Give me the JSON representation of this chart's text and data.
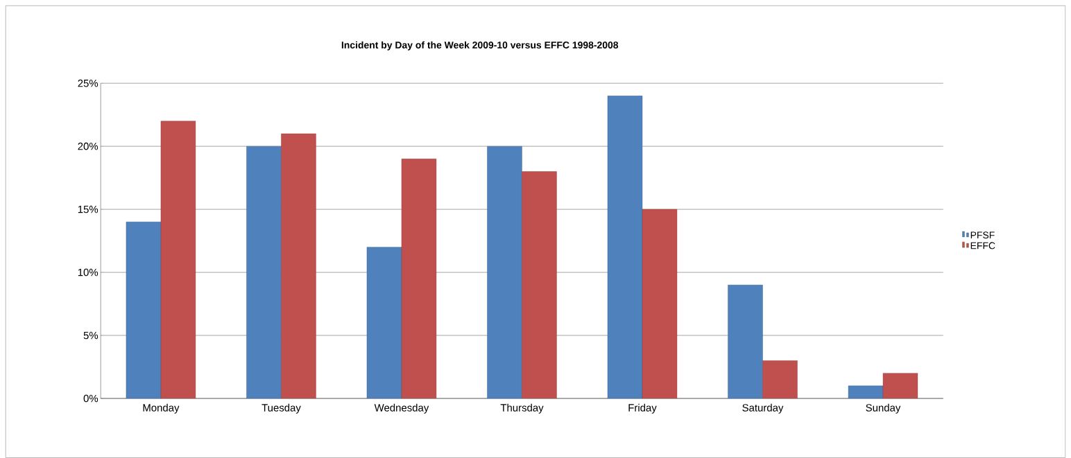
{
  "chart_data": {
    "type": "bar",
    "title": "Incident by Day of the Week 2009-10 versus EFFC 1998-2008",
    "categories": [
      "Monday",
      "Tuesday",
      "Wednesday",
      "Thursday",
      "Friday",
      "Saturday",
      "Sunday"
    ],
    "series": [
      {
        "name": "PFSF",
        "color": "#4f81bd",
        "values": [
          14,
          20,
          12,
          20,
          24,
          9,
          1
        ]
      },
      {
        "name": "EFFC",
        "color": "#c0504d",
        "values": [
          22,
          21,
          19,
          18,
          15,
          3,
          2
        ]
      }
    ],
    "ylim": [
      0,
      25
    ],
    "yticks": [
      {
        "value": 0,
        "label": "0%"
      },
      {
        "value": 5,
        "label": "5%"
      },
      {
        "value": 10,
        "label": "10%"
      },
      {
        "value": 15,
        "label": "15%"
      },
      {
        "value": 20,
        "label": "20%"
      },
      {
        "value": 25,
        "label": "25%"
      }
    ],
    "grid": "y",
    "legend": "right"
  }
}
